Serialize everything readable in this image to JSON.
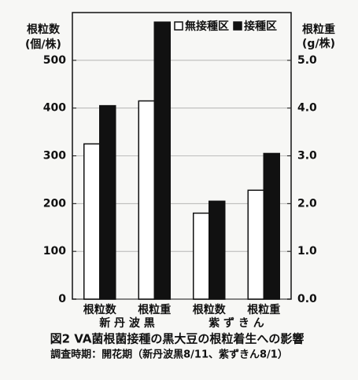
{
  "chart_data": {
    "type": "bar",
    "caption": "図2  VA菌根菌接種の黒大豆の根粒着生への影響",
    "subcaption": "調査時期：開花期（新丹波黒8/11、紫ずきん8/1）",
    "y_label": [
      "根粒数",
      "(個/株)"
    ],
    "y2_label": [
      "根粒重",
      "(g/株)"
    ],
    "categories": [
      "根粒数",
      "根粒重",
      "根粒数",
      "根粒重"
    ],
    "category_axes": [
      "y",
      "y2",
      "y",
      "y2"
    ],
    "groups": [
      "新 丹 波 黒",
      "紫 ず き ん"
    ],
    "series": [
      {
        "name": "無接種区",
        "color": "#ffffff",
        "values": [
          325,
          4.15,
          180,
          2.28
        ]
      },
      {
        "name": "接種区",
        "color": "#111111",
        "values": [
          405,
          5.8,
          205,
          3.05
        ]
      }
    ],
    "ylim": [
      0,
      600
    ],
    "yticks": [
      0,
      100,
      200,
      300,
      400,
      500
    ],
    "y2lim": [
      0,
      6
    ],
    "y2ticks": [
      {
        "value": 0,
        "label": "0.0"
      },
      {
        "value": 1,
        "label": "1.0"
      },
      {
        "value": 2,
        "label": "2.0"
      },
      {
        "value": 3,
        "label": "3.0"
      },
      {
        "value": 4,
        "label": "4.0"
      },
      {
        "value": 5,
        "label": "5.0"
      }
    ],
    "grid": true,
    "legend": "top-right"
  }
}
